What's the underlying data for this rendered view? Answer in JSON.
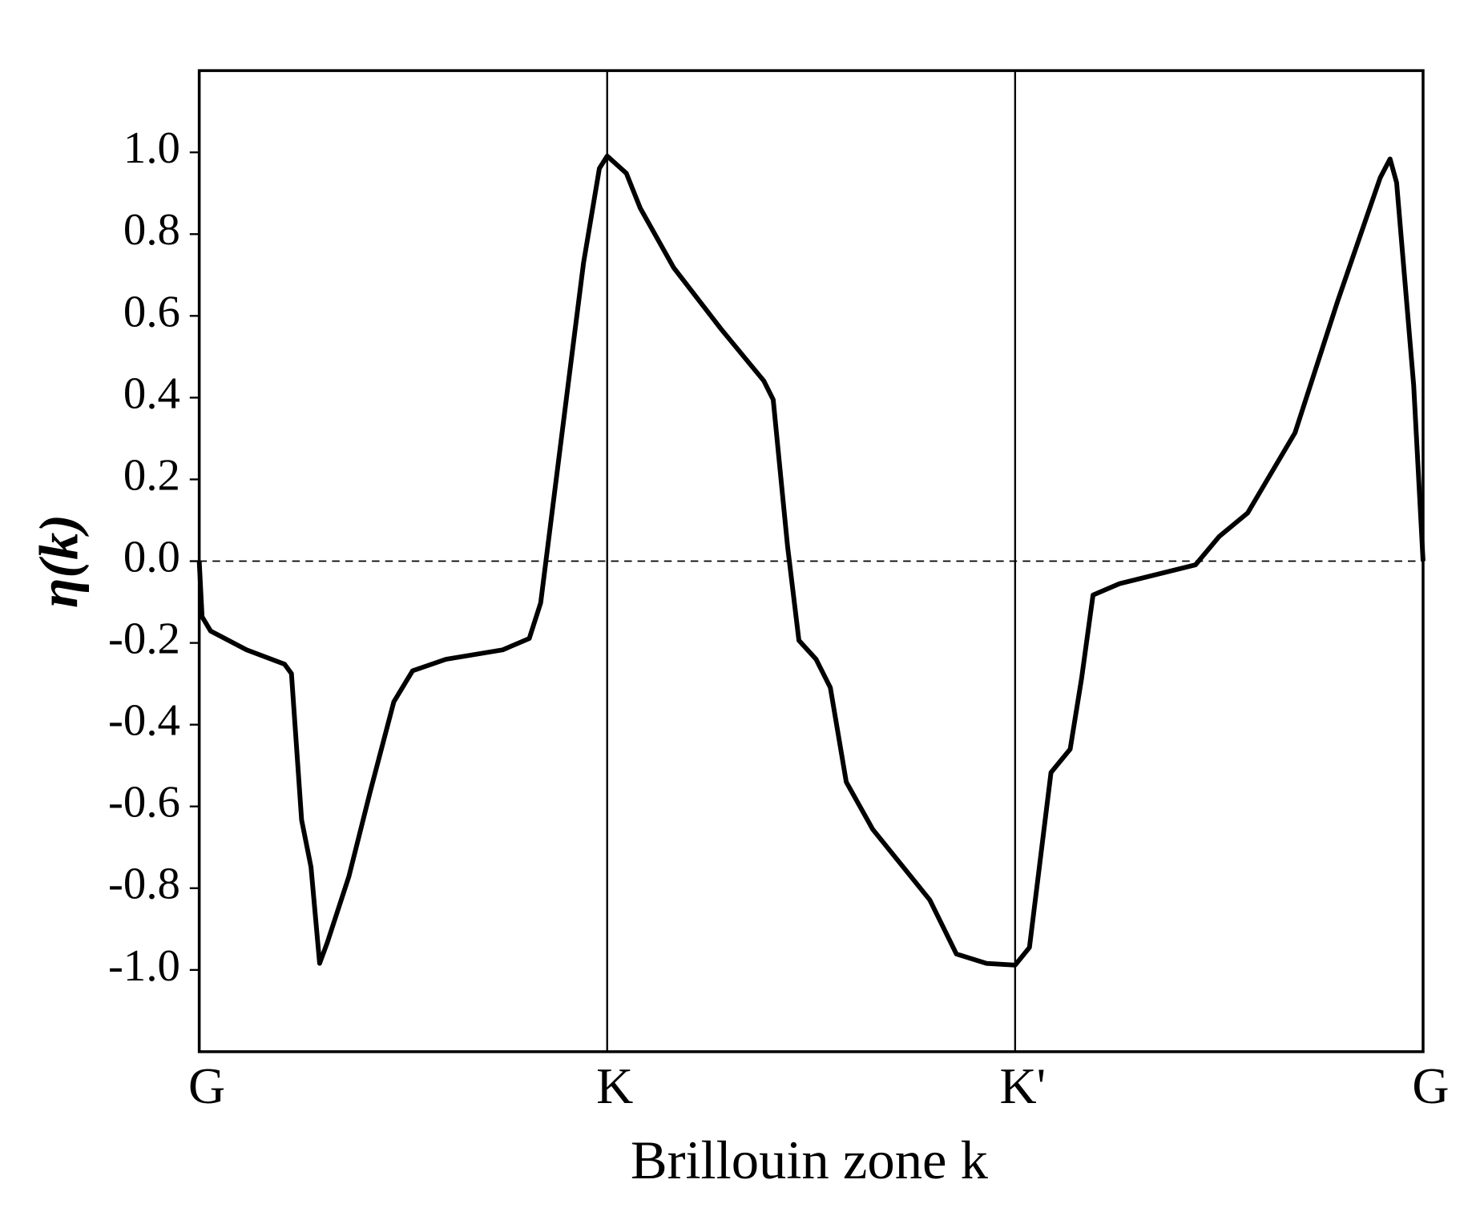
{
  "chart_data": {
    "type": "line",
    "xlabel": "Brillouin zone k",
    "ylabel": "η(k)",
    "x": [
      0,
      0.007,
      0.028,
      0.116,
      0.209,
      0.226,
      0.251,
      0.274,
      0.295,
      0.314,
      0.367,
      0.419,
      0.477,
      0.523,
      0.605,
      0.744,
      0.809,
      0.837,
      0.907,
      0.942,
      0.981,
      1.0,
      1.047,
      1.081,
      1.163,
      1.279,
      1.384,
      1.407,
      1.442,
      1.47,
      1.512,
      1.547,
      1.586,
      1.651,
      1.791,
      1.856,
      1.93,
      2.0,
      2.035,
      2.088,
      2.135,
      2.163,
      2.191,
      2.256,
      2.442,
      2.5,
      2.57,
      2.686,
      2.791,
      2.895,
      2.919,
      2.935,
      2.977,
      3.0
    ],
    "y": [
      0,
      -0.136,
      -0.171,
      -0.217,
      -0.252,
      -0.275,
      -0.633,
      -0.748,
      -0.984,
      -0.933,
      -0.771,
      -0.564,
      -0.344,
      -0.268,
      -0.24,
      -0.217,
      -0.189,
      -0.102,
      0.453,
      0.73,
      0.961,
      0.991,
      0.949,
      0.864,
      0.718,
      0.568,
      0.441,
      0.395,
      0.037,
      -0.194,
      -0.24,
      -0.309,
      -0.54,
      -0.656,
      -0.829,
      -0.961,
      -0.984,
      -0.988,
      -0.945,
      -0.517,
      -0.46,
      -0.286,
      -0.083,
      -0.055,
      -0.009,
      0.06,
      0.118,
      0.314,
      0.637,
      0.938,
      0.984,
      0.926,
      0.43,
      0
    ],
    "color": "#000000",
    "xlim": [
      0,
      3
    ],
    "ylim": [
      -1.2,
      1.2
    ],
    "xticks": [
      {
        "value": 0,
        "label": "G"
      },
      {
        "value": 1,
        "label": "K"
      },
      {
        "value": 2,
        "label": "K'"
      },
      {
        "value": 3,
        "label": "G"
      }
    ],
    "yticks": [
      {
        "value": -1,
        "label": "-1.0"
      },
      -0.8,
      -0.6,
      -0.4,
      -0.2,
      {
        "value": 0,
        "label": "0.0"
      },
      0.2,
      0.4,
      0.6,
      0.8,
      {
        "value": 1,
        "label": "1.0"
      }
    ],
    "xgrid": true,
    "hline": 0
  }
}
